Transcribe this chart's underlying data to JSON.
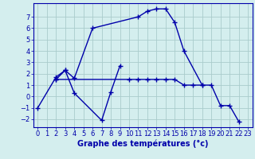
{
  "background_color": "#d4eeee",
  "grid_color": "#aacccc",
  "line_color": "#0000aa",
  "xlabel": "Graphe des températures (°c)",
  "xlabel_fontsize": 7,
  "tick_fontsize": 6,
  "xlim": [
    -0.5,
    23.5
  ],
  "ylim": [
    -2.7,
    8.2
  ],
  "yticks": [
    -2,
    -1,
    0,
    1,
    2,
    3,
    4,
    5,
    6,
    7
  ],
  "xticks": [
    0,
    1,
    2,
    3,
    4,
    5,
    6,
    7,
    8,
    9,
    10,
    11,
    12,
    13,
    14,
    15,
    16,
    17,
    18,
    19,
    20,
    21,
    22,
    23
  ],
  "series": [
    {
      "x": [
        0,
        2,
        3,
        4,
        7,
        8,
        9
      ],
      "y": [
        -1.0,
        1.7,
        2.3,
        0.3,
        -2.1,
        0.4,
        2.7
      ]
    },
    {
      "x": [
        2,
        3,
        4,
        6,
        11,
        12,
        13,
        14,
        15,
        16,
        18
      ],
      "y": [
        1.5,
        2.3,
        1.6,
        6.0,
        7.0,
        7.5,
        7.7,
        7.7,
        6.5,
        4.0,
        1.0
      ]
    },
    {
      "x": [
        2,
        10,
        11,
        12,
        13,
        14,
        15,
        16,
        17,
        18,
        19,
        20,
        21,
        22
      ],
      "y": [
        1.5,
        1.5,
        1.5,
        1.5,
        1.5,
        1.5,
        1.5,
        1.0,
        1.0,
        1.0,
        1.0,
        -0.8,
        -0.8,
        -2.2
      ]
    }
  ]
}
